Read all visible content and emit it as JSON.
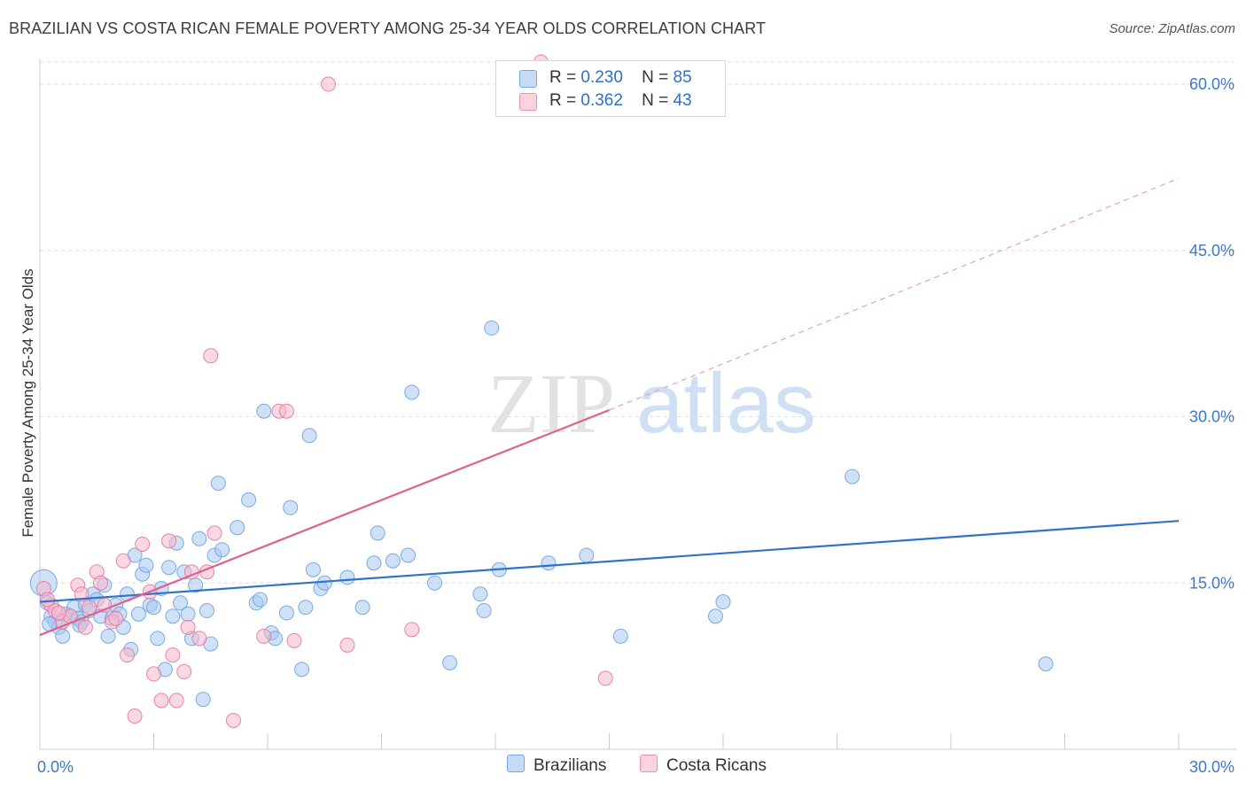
{
  "header": {
    "title": "BRAZILIAN VS COSTA RICAN FEMALE POVERTY AMONG 25-34 YEAR OLDS CORRELATION CHART",
    "source": "Source: ZipAtlas.com"
  },
  "watermark": {
    "zip": "ZIP",
    "atlas": "atlas"
  },
  "legend": {
    "r_label": "R =",
    "n_label": "N =",
    "items": [
      {
        "r": "0.230",
        "n": "85",
        "color": "#a8c8f0"
      },
      {
        "r": "0.362",
        "n": "43",
        "color": "#f6b8cc"
      }
    ]
  },
  "bottom_legend": [
    {
      "label": "Brazilians",
      "color": "#a8c8f0"
    },
    {
      "label": "Costa Ricans",
      "color": "#f6b8cc"
    }
  ],
  "chart_data": {
    "type": "scatter",
    "title": "BRAZILIAN VS COSTA RICAN FEMALE POVERTY AMONG 25-34 YEAR OLDS CORRELATION CHART",
    "xlabel": "",
    "ylabel": "Female Poverty Among 25-34 Year Olds",
    "xlim": [
      0,
      30
    ],
    "ylim": [
      0,
      62
    ],
    "x_tick_labels": [
      {
        "value": 0,
        "label": "0.0%"
      },
      {
        "value": 30,
        "label": "30.0%"
      }
    ],
    "y_tick_labels": [
      {
        "value": 15,
        "label": "15.0%"
      },
      {
        "value": 30,
        "label": "30.0%"
      },
      {
        "value": 45,
        "label": "45.0%"
      },
      {
        "value": 60,
        "label": "60.0%"
      }
    ],
    "grid": true,
    "legend_position": "top-center",
    "series": [
      {
        "name": "Brazilians",
        "color": "#6fa2e0",
        "fill": "#a8c8f0",
        "trend": {
          "x": [
            0,
            30
          ],
          "y": [
            13.3,
            20.6
          ]
        },
        "points": [
          [
            0.1,
            15.0
          ],
          [
            0.2,
            13.2
          ],
          [
            0.3,
            12.0
          ],
          [
            0.4,
            11.5
          ],
          [
            0.5,
            11.0
          ],
          [
            0.6,
            10.2
          ],
          [
            0.7,
            12.2
          ],
          [
            0.8,
            12.0
          ],
          [
            0.9,
            12.8
          ],
          [
            1.0,
            11.8
          ],
          [
            1.1,
            11.5
          ],
          [
            1.2,
            13.0
          ],
          [
            1.3,
            12.5
          ],
          [
            1.4,
            14.0
          ],
          [
            1.5,
            13.5
          ],
          [
            1.6,
            12.0
          ],
          [
            1.7,
            14.8
          ],
          [
            1.8,
            10.2
          ],
          [
            1.9,
            11.8
          ],
          [
            2.0,
            13.0
          ],
          [
            2.1,
            12.2
          ],
          [
            2.2,
            11.0
          ],
          [
            2.3,
            14.0
          ],
          [
            2.4,
            9.0
          ],
          [
            2.5,
            17.5
          ],
          [
            2.6,
            12.2
          ],
          [
            2.7,
            15.8
          ],
          [
            2.8,
            16.6
          ],
          [
            2.9,
            13.0
          ],
          [
            3.0,
            12.8
          ],
          [
            3.1,
            10.0
          ],
          [
            3.2,
            14.5
          ],
          [
            3.3,
            7.2
          ],
          [
            3.4,
            16.4
          ],
          [
            3.5,
            12.0
          ],
          [
            3.6,
            18.6
          ],
          [
            3.7,
            13.2
          ],
          [
            3.8,
            16.0
          ],
          [
            3.9,
            12.2
          ],
          [
            4.0,
            10.0
          ],
          [
            4.1,
            14.8
          ],
          [
            4.2,
            19.0
          ],
          [
            4.3,
            4.5
          ],
          [
            4.4,
            12.5
          ],
          [
            4.5,
            9.5
          ],
          [
            4.6,
            17.5
          ],
          [
            4.7,
            24.0
          ],
          [
            4.8,
            18.0
          ],
          [
            5.2,
            20.0
          ],
          [
            5.5,
            22.5
          ],
          [
            5.7,
            13.2
          ],
          [
            5.8,
            13.5
          ],
          [
            5.9,
            30.5
          ],
          [
            6.1,
            10.5
          ],
          [
            6.2,
            10.0
          ],
          [
            6.5,
            12.3
          ],
          [
            6.6,
            21.8
          ],
          [
            6.9,
            7.2
          ],
          [
            7.0,
            12.8
          ],
          [
            7.1,
            28.3
          ],
          [
            7.2,
            16.2
          ],
          [
            7.4,
            14.5
          ],
          [
            7.5,
            15.0
          ],
          [
            8.1,
            15.5
          ],
          [
            8.5,
            12.8
          ],
          [
            8.8,
            16.8
          ],
          [
            8.9,
            19.5
          ],
          [
            9.3,
            17.0
          ],
          [
            9.7,
            17.5
          ],
          [
            9.8,
            32.2
          ],
          [
            10.4,
            15.0
          ],
          [
            10.8,
            7.8
          ],
          [
            11.6,
            14.0
          ],
          [
            11.7,
            12.5
          ],
          [
            11.9,
            38.0
          ],
          [
            12.1,
            16.2
          ],
          [
            13.4,
            16.8
          ],
          [
            14.4,
            17.5
          ],
          [
            15.3,
            10.2
          ],
          [
            17.8,
            12.0
          ],
          [
            18.0,
            13.3
          ],
          [
            21.4,
            24.6
          ],
          [
            26.5,
            7.7
          ],
          [
            0.25,
            11.3
          ],
          [
            1.05,
            11.2
          ]
        ]
      },
      {
        "name": "Costa Ricans",
        "color": "#e8779d",
        "fill": "#f6b8cc",
        "trend": {
          "x": [
            0,
            15
          ],
          "y": [
            10.3,
            30.6
          ]
        },
        "trend_extension": {
          "x": [
            15,
            30
          ],
          "y": [
            30.6,
            51.5
          ]
        },
        "points": [
          [
            0.1,
            14.5
          ],
          [
            0.3,
            13.0
          ],
          [
            0.4,
            12.5
          ],
          [
            0.6,
            11.5
          ],
          [
            0.8,
            12.0
          ],
          [
            1.0,
            14.8
          ],
          [
            1.2,
            11.0
          ],
          [
            1.5,
            16.0
          ],
          [
            1.6,
            15.0
          ],
          [
            1.7,
            13.0
          ],
          [
            1.9,
            11.5
          ],
          [
            2.0,
            11.8
          ],
          [
            2.2,
            17.0
          ],
          [
            2.3,
            8.5
          ],
          [
            2.5,
            3.0
          ],
          [
            2.7,
            18.5
          ],
          [
            2.9,
            14.2
          ],
          [
            3.0,
            6.8
          ],
          [
            3.2,
            4.4
          ],
          [
            3.4,
            18.8
          ],
          [
            3.5,
            8.5
          ],
          [
            3.6,
            4.4
          ],
          [
            3.8,
            7.0
          ],
          [
            4.0,
            16.0
          ],
          [
            4.2,
            10.0
          ],
          [
            4.4,
            16.0
          ],
          [
            4.5,
            35.5
          ],
          [
            4.6,
            19.5
          ],
          [
            5.1,
            2.6
          ],
          [
            5.9,
            10.2
          ],
          [
            6.3,
            30.5
          ],
          [
            6.5,
            30.5
          ],
          [
            6.7,
            9.8
          ],
          [
            7.6,
            60.0
          ],
          [
            8.1,
            9.4
          ],
          [
            9.8,
            10.8
          ],
          [
            13.2,
            62.0
          ],
          [
            14.9,
            6.4
          ],
          [
            0.2,
            13.5
          ],
          [
            0.5,
            12.3
          ],
          [
            1.1,
            14.0
          ],
          [
            1.3,
            12.8
          ],
          [
            3.9,
            11.0
          ]
        ]
      }
    ]
  }
}
